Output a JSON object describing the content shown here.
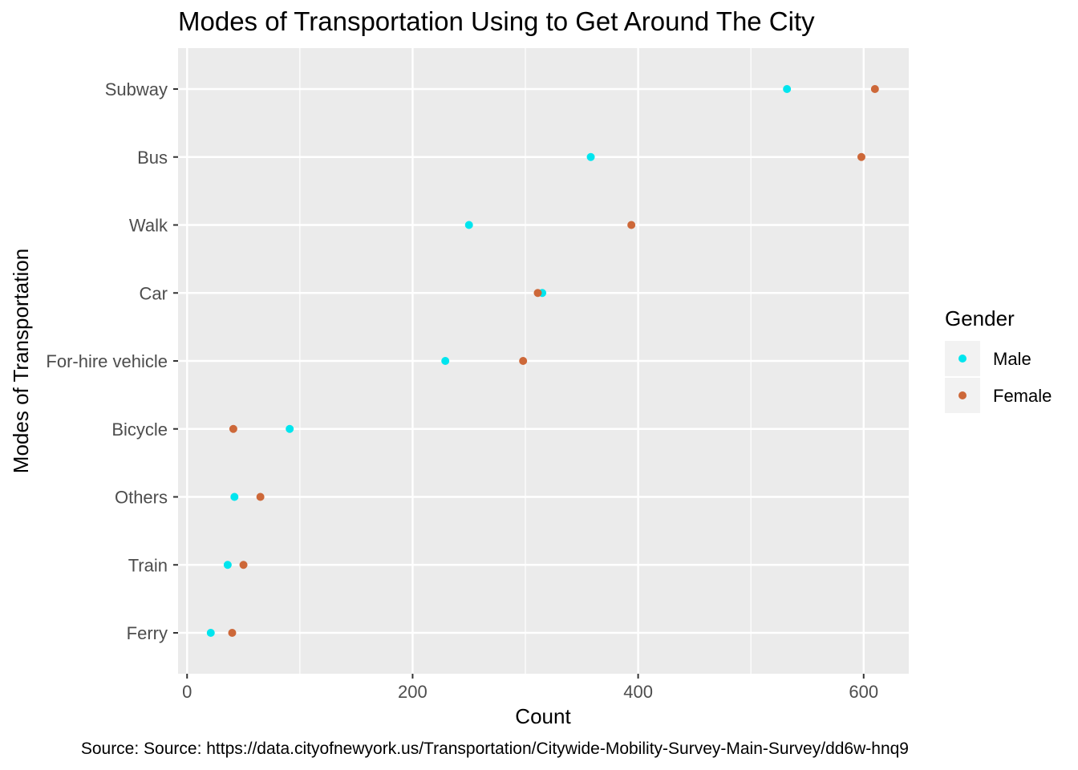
{
  "chart_data": {
    "type": "scatter",
    "title": "Modes of Transportation Using to Get Around The City",
    "xlabel": "Count",
    "ylabel": "Modes of Transportation",
    "caption": "Source: Source: https://data.cityofnewyork.us/Transportation/Citywide-Mobility-Survey-Main-Survey/dd6w-hnq9",
    "categories": [
      "Subway",
      "Bus",
      "Walk",
      "Car",
      "For-hire vehicle",
      "Bicycle",
      "Others",
      "Train",
      "Ferry"
    ],
    "xlim": [
      -8,
      640
    ],
    "xticks": [
      0,
      200,
      400,
      600
    ],
    "xtick_labels": [
      "0",
      "200",
      "400",
      "600"
    ],
    "grid": true,
    "legend": {
      "title": "Gender",
      "position": "right"
    },
    "series": [
      {
        "name": "Male",
        "color": "#00E5EE",
        "values": [
          532,
          358,
          250,
          315,
          229,
          91,
          42,
          36,
          21
        ]
      },
      {
        "name": "Female",
        "color": "#CD6839",
        "values": [
          610,
          598,
          394,
          311,
          298,
          41,
          65,
          50,
          40
        ]
      }
    ]
  }
}
